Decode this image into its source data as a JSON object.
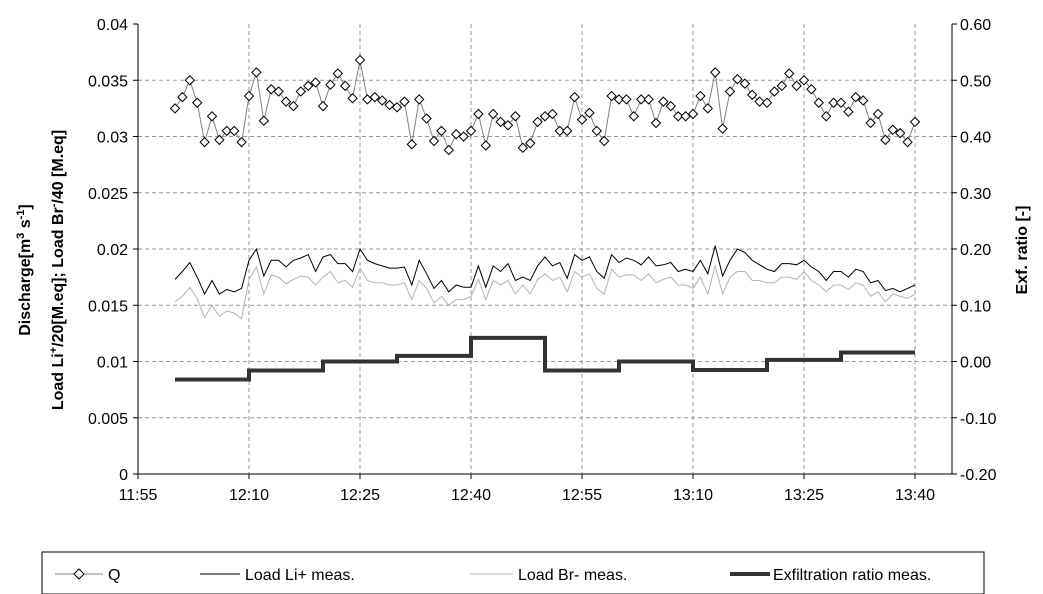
{
  "chart_data": {
    "type": "line",
    "ylabel_left_line1": "Discharge[m",
    "ylabel_left_sup1": "3",
    "ylabel_left_mid1": " s",
    "ylabel_left_sup2": "-1",
    "ylabel_left_end1": "]",
    "ylabel_left_line2a": "Load Li",
    "ylabel_left_sup3": "+",
    "ylabel_left_line2b": "/20[M.eq]; Load Br",
    "ylabel_left_sup4": "-",
    "ylabel_left_line2c": "/40 [M.eq]",
    "ylabel_right": "Exf. ratio [-]",
    "xlim": [
      "11:55",
      "13:45"
    ],
    "xticks": [
      "11:55",
      "12:10",
      "12:25",
      "12:40",
      "12:55",
      "13:10",
      "13:25",
      "13:40"
    ],
    "ylim_left": [
      0,
      0.04
    ],
    "yticks_left": [
      "0",
      "0.005",
      "0.01",
      "0.015",
      "0.02",
      "0.025",
      "0.03",
      "0.035",
      "0.04"
    ],
    "ylim_right": [
      -0.2,
      0.6
    ],
    "yticks_right": [
      "-0.20",
      "-0.10",
      "0.00",
      "0.10",
      "0.20",
      "0.30",
      "0.40",
      "0.50",
      "0.60"
    ],
    "grid": true,
    "legend_position": "bottom",
    "x_times": [
      "12:00",
      "12:01",
      "12:02",
      "12:03",
      "12:04",
      "12:05",
      "12:06",
      "12:07",
      "12:08",
      "12:09",
      "12:10",
      "12:11",
      "12:12",
      "12:13",
      "12:14",
      "12:15",
      "12:16",
      "12:17",
      "12:18",
      "12:19",
      "12:20",
      "12:21",
      "12:22",
      "12:23",
      "12:24",
      "12:25",
      "12:26",
      "12:27",
      "12:28",
      "12:29",
      "12:30",
      "12:31",
      "12:32",
      "12:33",
      "12:34",
      "12:35",
      "12:36",
      "12:37",
      "12:38",
      "12:39",
      "12:40",
      "12:41",
      "12:42",
      "12:43",
      "12:44",
      "12:45",
      "12:46",
      "12:47",
      "12:48",
      "12:49",
      "12:50",
      "12:51",
      "12:52",
      "12:53",
      "12:54",
      "12:55",
      "12:56",
      "12:57",
      "12:58",
      "12:59",
      "13:00",
      "13:01",
      "13:02",
      "13:03",
      "13:04",
      "13:05",
      "13:06",
      "13:07",
      "13:08",
      "13:09",
      "13:10",
      "13:11",
      "13:12",
      "13:13",
      "13:14",
      "13:15",
      "13:16",
      "13:17",
      "13:18",
      "13:19",
      "13:20",
      "13:21",
      "13:22",
      "13:23",
      "13:24",
      "13:25",
      "13:26",
      "13:27",
      "13:28",
      "13:29",
      "13:30",
      "13:31",
      "13:32",
      "13:33",
      "13:34",
      "13:35",
      "13:36",
      "13:37",
      "13:38",
      "13:39",
      "13:40"
    ],
    "series": [
      {
        "name": "Q",
        "axis": "left",
        "style": "marker-line",
        "color": "#808080",
        "values": [
          0.0325,
          0.0335,
          0.035,
          0.033,
          0.0295,
          0.0318,
          0.0297,
          0.0305,
          0.0305,
          0.0295,
          0.0336,
          0.0357,
          0.0314,
          0.0342,
          0.034,
          0.0331,
          0.0327,
          0.034,
          0.0345,
          0.0348,
          0.0327,
          0.0346,
          0.0356,
          0.0345,
          0.0334,
          0.0368,
          0.0333,
          0.0335,
          0.0332,
          0.0328,
          0.0326,
          0.0331,
          0.0293,
          0.0333,
          0.0316,
          0.0296,
          0.0305,
          0.0288,
          0.0302,
          0.03,
          0.0305,
          0.032,
          0.0292,
          0.032,
          0.0313,
          0.031,
          0.0318,
          0.029,
          0.0294,
          0.0313,
          0.0318,
          0.032,
          0.0305,
          0.0305,
          0.0335,
          0.0315,
          0.0321,
          0.0305,
          0.0296,
          0.0336,
          0.0333,
          0.0333,
          0.0318,
          0.0333,
          0.0333,
          0.0312,
          0.0331,
          0.0327,
          0.0318,
          0.0318,
          0.032,
          0.0336,
          0.0325,
          0.0357,
          0.0307,
          0.034,
          0.0351,
          0.0347,
          0.0337,
          0.0331,
          0.033,
          0.034,
          0.0345,
          0.0356,
          0.0345,
          0.035,
          0.0342,
          0.033,
          0.0318,
          0.033,
          0.033,
          0.0322,
          0.0335,
          0.0332,
          0.0312,
          0.032,
          0.0297,
          0.0306,
          0.0303,
          0.0295,
          0.0313
        ]
      },
      {
        "name": "Load Li+ meas.",
        "axis": "left",
        "style": "line",
        "color": "#000000",
        "values": [
          0.0173,
          0.018,
          0.0188,
          0.0175,
          0.016,
          0.0172,
          0.016,
          0.0164,
          0.0162,
          0.0165,
          0.019,
          0.02,
          0.0176,
          0.019,
          0.019,
          0.0184,
          0.019,
          0.0192,
          0.0195,
          0.018,
          0.0193,
          0.0195,
          0.0187,
          0.0187,
          0.018,
          0.02,
          0.019,
          0.0187,
          0.0185,
          0.0183,
          0.0183,
          0.0184,
          0.0168,
          0.019,
          0.0178,
          0.0165,
          0.0172,
          0.0162,
          0.0168,
          0.0166,
          0.0166,
          0.0185,
          0.0166,
          0.0185,
          0.018,
          0.0187,
          0.0172,
          0.0175,
          0.0172,
          0.0185,
          0.0193,
          0.0185,
          0.0188,
          0.0174,
          0.0195,
          0.019,
          0.0193,
          0.018,
          0.0174,
          0.0195,
          0.0188,
          0.0192,
          0.019,
          0.0186,
          0.0193,
          0.0185,
          0.0186,
          0.0188,
          0.018,
          0.0182,
          0.018,
          0.019,
          0.0178,
          0.0203,
          0.0176,
          0.019,
          0.02,
          0.0197,
          0.019,
          0.0186,
          0.0182,
          0.018,
          0.0187,
          0.0187,
          0.0186,
          0.019,
          0.0184,
          0.018,
          0.0172,
          0.018,
          0.018,
          0.0175,
          0.0182,
          0.018,
          0.017,
          0.0172,
          0.0163,
          0.0165,
          0.0162,
          0.0165,
          0.0168
        ]
      },
      {
        "name": "Load Br- meas.",
        "axis": "left",
        "style": "line",
        "color": "#b3b3b3",
        "values": [
          0.0153,
          0.0158,
          0.0166,
          0.0156,
          0.0139,
          0.015,
          0.014,
          0.0145,
          0.0143,
          0.0138,
          0.0173,
          0.0184,
          0.016,
          0.0177,
          0.0175,
          0.0169,
          0.0173,
          0.0176,
          0.0175,
          0.0168,
          0.0175,
          0.018,
          0.017,
          0.0172,
          0.0166,
          0.0183,
          0.0172,
          0.017,
          0.017,
          0.0168,
          0.0168,
          0.017,
          0.0155,
          0.0172,
          0.0165,
          0.0152,
          0.0158,
          0.015,
          0.0155,
          0.0155,
          0.0158,
          0.0173,
          0.0155,
          0.0172,
          0.0168,
          0.0172,
          0.016,
          0.0168,
          0.016,
          0.0173,
          0.0178,
          0.0172,
          0.0175,
          0.0162,
          0.018,
          0.0175,
          0.0178,
          0.0165,
          0.016,
          0.0182,
          0.0175,
          0.0177,
          0.0177,
          0.0172,
          0.0178,
          0.017,
          0.0173,
          0.0175,
          0.0168,
          0.0168,
          0.0165,
          0.0175,
          0.016,
          0.0185,
          0.016,
          0.0175,
          0.018,
          0.018,
          0.0172,
          0.0172,
          0.017,
          0.017,
          0.0175,
          0.0175,
          0.0173,
          0.018,
          0.0172,
          0.0168,
          0.0162,
          0.0168,
          0.0168,
          0.0164,
          0.017,
          0.0168,
          0.0158,
          0.0162,
          0.0153,
          0.016,
          0.0158,
          0.0156,
          0.016
        ]
      },
      {
        "name": "Exfiltration ratio meas.",
        "axis": "right",
        "style": "step",
        "color": "#333333",
        "segments": [
          {
            "start": "12:00",
            "end": "12:10",
            "value": -0.032
          },
          {
            "start": "12:10",
            "end": "12:20",
            "value": -0.016
          },
          {
            "start": "12:20",
            "end": "12:30",
            "value": 0.0
          },
          {
            "start": "12:30",
            "end": "12:40",
            "value": 0.01
          },
          {
            "start": "12:40",
            "end": "12:50",
            "value": 0.042
          },
          {
            "start": "12:50",
            "end": "13:00",
            "value": -0.016
          },
          {
            "start": "13:00",
            "end": "13:10",
            "value": 0.0
          },
          {
            "start": "13:10",
            "end": "13:20",
            "value": -0.015
          },
          {
            "start": "13:20",
            "end": "13:30",
            "value": 0.003
          },
          {
            "start": "13:30",
            "end": "13:40",
            "value": 0.016
          }
        ]
      }
    ]
  }
}
